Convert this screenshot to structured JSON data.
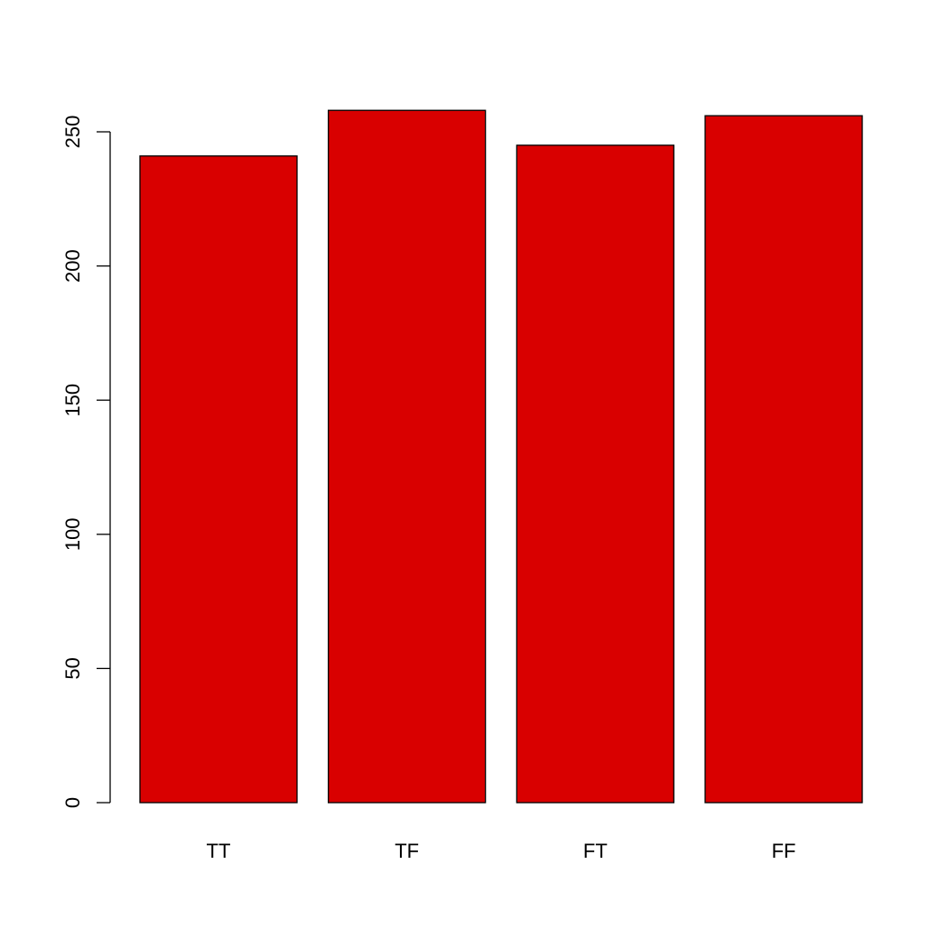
{
  "chart_data": {
    "type": "bar",
    "categories": [
      "TT",
      "TF",
      "FT",
      "FF"
    ],
    "values": [
      241,
      258,
      245,
      256
    ],
    "ylim": [
      0,
      250
    ],
    "yticks": [
      0,
      50,
      100,
      150,
      200,
      250
    ],
    "grid": false,
    "legend": "none",
    "bar_color": "#D90000",
    "axis_color": "#000000",
    "background": "#FFFFFF"
  }
}
